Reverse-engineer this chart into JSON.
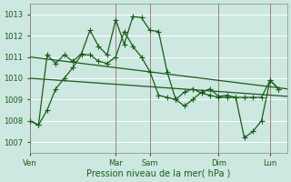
{
  "bg_color": "#cce8e0",
  "grid_color": "#b8ddd5",
  "line_color": "#1a5c1a",
  "vline_color": "#996666",
  "ylim": [
    1006.5,
    1013.5
  ],
  "yticks": [
    1007,
    1008,
    1009,
    1010,
    1011,
    1012,
    1013
  ],
  "xlabel": "Pression niveau de la mer( hPa )",
  "day_labels": [
    "Ven",
    "Mar",
    "Sam",
    "Dim",
    "Lun"
  ],
  "day_x": [
    0,
    10,
    14,
    22,
    28
  ],
  "xlim": [
    0,
    30
  ],
  "trend1_x": [
    0,
    30
  ],
  "trend1_y": [
    1011.0,
    1009.5
  ],
  "trend2_x": [
    0,
    30
  ],
  "trend2_y": [
    1010.0,
    1009.15
  ],
  "line_upper_x": [
    0,
    1,
    2,
    3,
    4,
    5,
    6,
    7,
    8,
    9,
    10,
    11,
    12,
    13,
    14,
    15,
    16,
    17,
    18,
    19,
    20,
    21,
    22,
    23,
    24,
    25,
    26,
    27,
    28,
    29
  ],
  "line_upper_y": [
    1008.0,
    1007.8,
    1011.1,
    1010.7,
    1011.1,
    1010.8,
    1011.15,
    1012.25,
    1011.5,
    1011.1,
    1012.75,
    1011.6,
    1012.9,
    1012.85,
    1012.25,
    1012.2,
    1010.3,
    1009.0,
    1008.7,
    1009.0,
    1009.35,
    1009.5,
    1009.15,
    1009.2,
    1009.1,
    1007.2,
    1007.5,
    1008.0,
    1009.9,
    1009.5
  ],
  "line_lower_x": [
    0,
    1,
    2,
    3,
    4,
    5,
    6,
    7,
    8,
    9,
    10,
    11,
    12,
    13,
    14,
    15,
    16,
    17,
    18,
    19,
    20,
    21,
    22,
    23,
    24,
    25,
    26,
    27,
    28,
    29
  ],
  "line_lower_y": [
    1008.0,
    1007.8,
    1008.5,
    1009.5,
    1010.0,
    1010.5,
    1011.1,
    1011.1,
    1010.8,
    1010.7,
    1011.0,
    1012.2,
    1011.5,
    1011.0,
    1010.3,
    1009.2,
    1009.1,
    1009.0,
    1009.35,
    1009.5,
    1009.3,
    1009.2,
    1009.1,
    1009.1,
    1009.1,
    1009.1,
    1009.1,
    1009.1,
    1009.9,
    1009.5
  ]
}
